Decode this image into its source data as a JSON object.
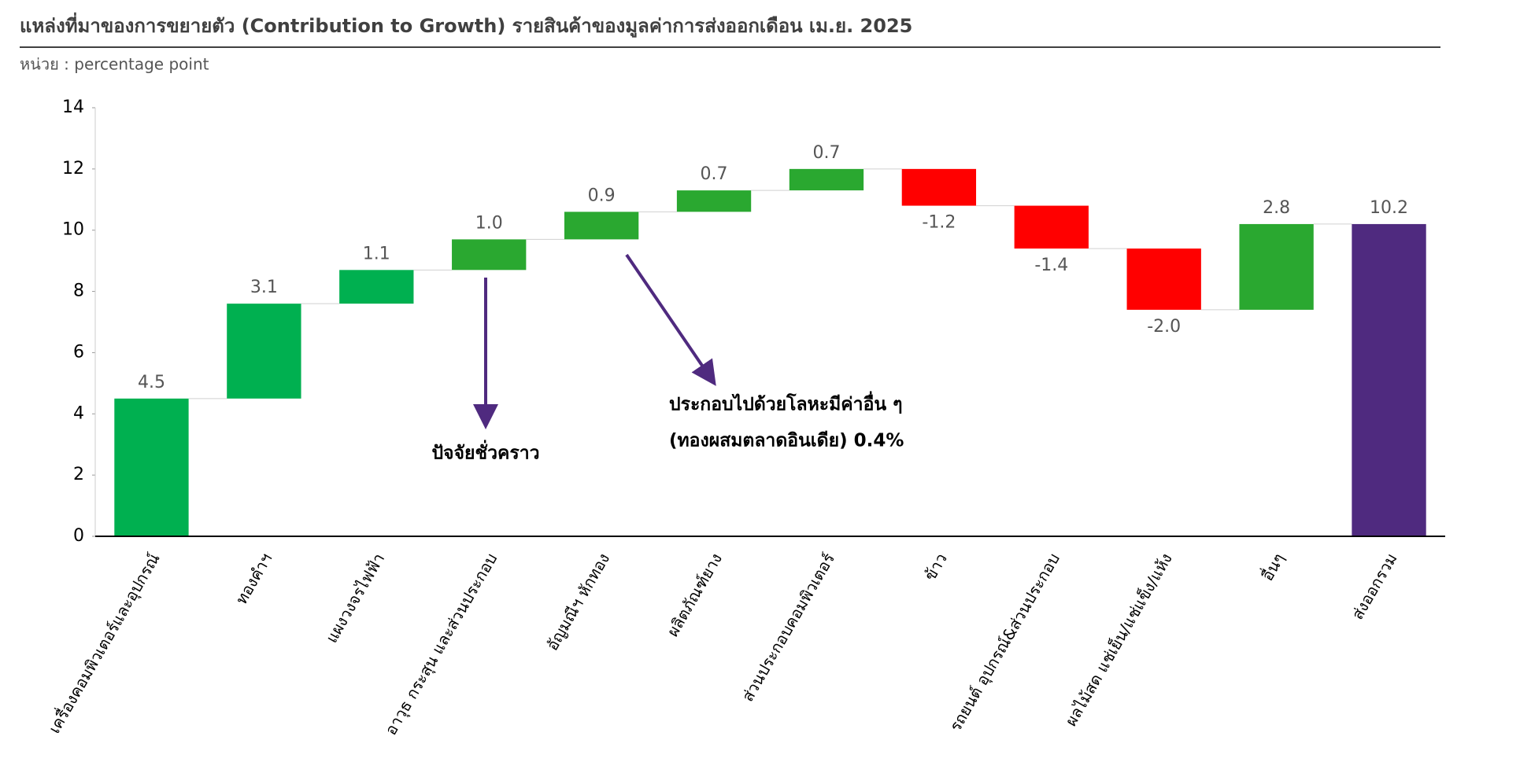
{
  "chart_data": {
    "type": "waterfall",
    "title": "แหล่งที่มาของการขยายตัว (Contribution to Growth) รายสินค้าของมูลค่าการส่งออกเดือน เม.ย. 2025",
    "subtitle": "หน่วย : percentage point",
    "categories": [
      "เครื่องคอมพิวเตอร์และอุปกรณ์",
      "ทองคำฯ",
      "แผงวงจรไฟฟ้า",
      "อาวุธ กระสุน และส่วนประกอบ",
      "อัญมณีฯ หักทอง",
      "ผลิตภัณฑ์ยาง",
      "ส่วนประกอบคอมพิวเตอร์",
      "ข้าว",
      "รถยนต์ อุปกรณ์&ส่วนประกอบ",
      "ผลไม้สด แช่เย็น/แช่แข็ง/แห้ง",
      "อื่นๆ",
      "ส่งออกรวม"
    ],
    "values": [
      4.5,
      3.1,
      1.1,
      1.0,
      0.9,
      0.7,
      0.7,
      -1.2,
      -1.4,
      -2.0,
      2.8,
      10.2
    ],
    "value_labels": [
      "4.5",
      "3.1",
      "1.1",
      "1.0",
      "0.9",
      "0.7",
      "0.7",
      "-1.2",
      "-1.4",
      "-2.0",
      "2.8",
      "10.2"
    ],
    "colors": [
      "#00b050",
      "#00b050",
      "#00b050",
      "#2aa830",
      "#2aa830",
      "#2aa830",
      "#2aa830",
      "#ff0000",
      "#ff0000",
      "#ff0000",
      "#2aa830",
      "#4f2a7f"
    ],
    "total_last": true,
    "ylim": [
      0,
      14
    ],
    "yticks": [
      0,
      2,
      4,
      6,
      8,
      10,
      12,
      14
    ],
    "annotations": [
      "ปัจจัยชั่วคราว",
      "ประกอบไปด้วยโลหะมีค่าอื่น ๆ",
      "(ทองผสมตลาดอินเดีย) 0.4%"
    ]
  }
}
